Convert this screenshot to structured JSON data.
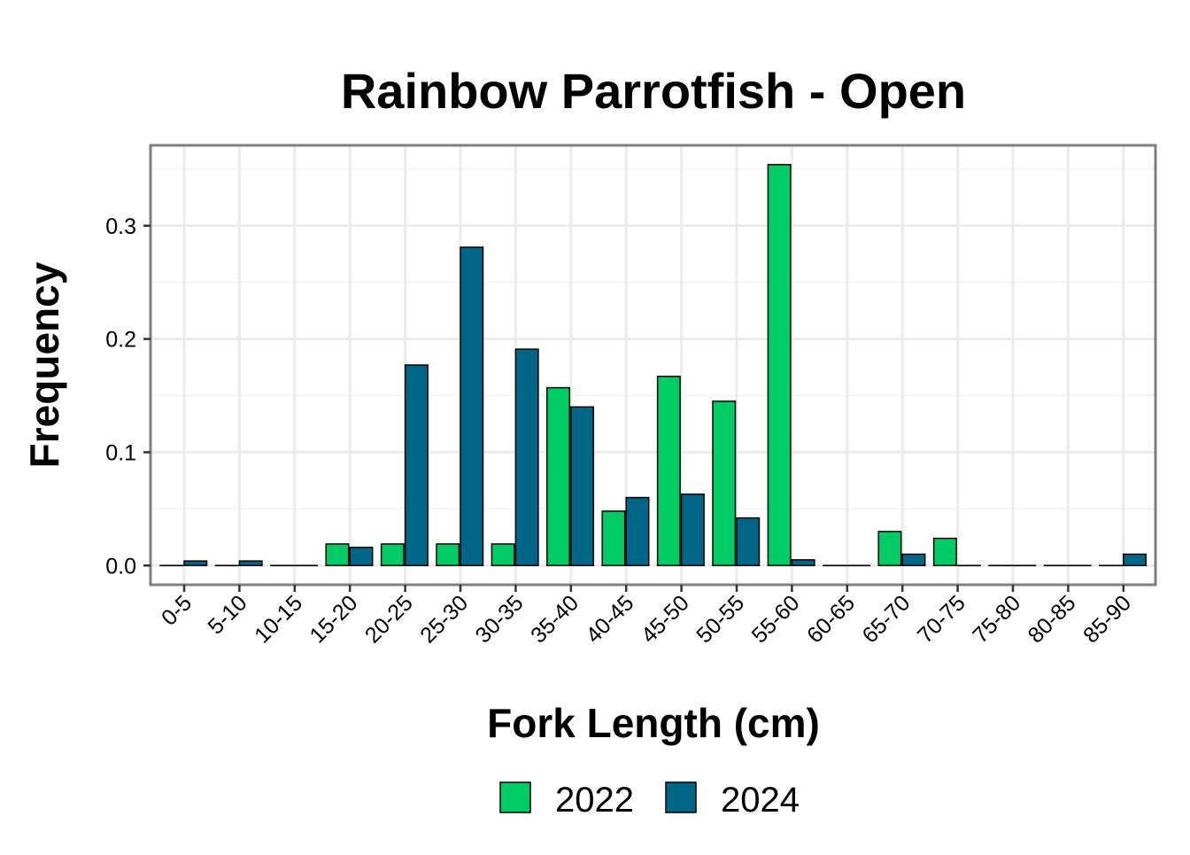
{
  "chart_data": {
    "type": "bar",
    "title": "Rainbow Parrotfish - Open",
    "xlabel": "Fork Length (cm)",
    "ylabel": "Frequency",
    "categories": [
      "0-5",
      "5-10",
      "10-15",
      "15-20",
      "20-25",
      "25-30",
      "30-35",
      "35-40",
      "40-45",
      "45-50",
      "50-55",
      "55-60",
      "60-65",
      "65-70",
      "70-75",
      "75-80",
      "80-85",
      "85-90"
    ],
    "series": [
      {
        "name": "2022",
        "color": "#00CC66",
        "values": [
          0.0,
          0.0,
          0.0,
          0.019,
          0.019,
          0.019,
          0.019,
          0.157,
          0.048,
          0.167,
          0.145,
          0.354,
          0.0,
          0.03,
          0.024,
          0.0,
          0.0,
          0.0
        ]
      },
      {
        "name": "2024",
        "color": "#006688",
        "values": [
          0.004,
          0.004,
          0.0,
          0.016,
          0.177,
          0.281,
          0.191,
          0.14,
          0.06,
          0.063,
          0.042,
          0.005,
          0.0,
          0.01,
          0.0,
          0.0,
          0.0,
          0.01
        ]
      }
    ],
    "ylim": [
      -0.017,
      0.371
    ],
    "yticks": [
      0.0,
      0.1,
      0.2,
      0.3
    ],
    "ytick_labels": [
      "0.0",
      "0.1",
      "0.2",
      "0.3"
    ],
    "grid": true,
    "legend_position": "bottom"
  }
}
